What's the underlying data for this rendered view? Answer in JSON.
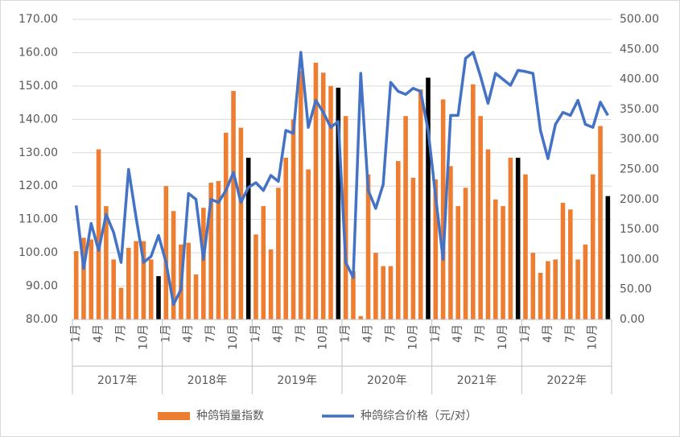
{
  "chart_data": {
    "type": "bar-line",
    "categories": [
      "1月",
      null,
      null,
      "4月",
      null,
      null,
      "7月",
      null,
      null,
      "10月",
      null,
      null,
      "1月",
      null,
      null,
      "4月",
      null,
      null,
      "7月",
      null,
      null,
      "10月",
      null,
      null,
      "1月",
      null,
      null,
      "4月",
      null,
      null,
      "7月",
      null,
      null,
      "10月",
      null,
      null,
      "1月",
      null,
      null,
      "4月",
      null,
      null,
      "7月",
      null,
      null,
      "10月",
      null,
      null,
      "1月",
      null,
      null,
      "4月",
      null,
      null,
      "7月",
      null,
      null,
      "10月",
      null,
      null,
      "1月",
      null,
      null,
      "4月",
      null,
      null,
      "7月",
      null,
      null,
      "10月",
      null,
      null
    ],
    "groups": [
      "2017年",
      "2018年",
      "2019年",
      "2020年",
      "2021年",
      "2022年"
    ],
    "series": [
      {
        "name": "种鸽销量指数",
        "color": "#ED7D31",
        "colors": [
          "#ED7D31",
          "#ED7D31",
          "#ED7D31",
          "#ED7D31",
          "#ED7D31",
          "#ED7D31",
          "#ED7D31",
          "#ED7D31",
          "#ED7D31",
          "#ED7D31",
          "#ED7D31",
          "#000000",
          "#ED7D31",
          "#ED7D31",
          "#ED7D31",
          "#ED7D31",
          "#ED7D31",
          "#ED7D31",
          "#ED7D31",
          "#ED7D31",
          "#ED7D31",
          "#ED7D31",
          "#ED7D31",
          "#000000",
          "#ED7D31",
          "#ED7D31",
          "#ED7D31",
          "#ED7D31",
          "#ED7D31",
          "#ED7D31",
          "#ED7D31",
          "#ED7D31",
          "#ED7D31",
          "#ED7D31",
          "#ED7D31",
          "#000000",
          "#ED7D31",
          "#ED7D31",
          "#ED7D31",
          "#ED7D31",
          "#ED7D31",
          "#ED7D31",
          "#ED7D31",
          "#ED7D31",
          "#ED7D31",
          "#ED7D31",
          "#ED7D31",
          "#000000",
          "#ED7D31",
          "#ED7D31",
          "#ED7D31",
          "#ED7D31",
          "#ED7D31",
          "#ED7D31",
          "#ED7D31",
          "#ED7D31",
          "#ED7D31",
          "#ED7D31",
          "#ED7D31",
          "#000000",
          "#ED7D31",
          "#ED7D31",
          "#ED7D31",
          "#ED7D31",
          "#ED7D31",
          "#ED7D31",
          "#ED7D31",
          "#ED7D31",
          "#ED7D31",
          "#ED7D31",
          "#ED7D31",
          "#000000"
        ],
        "values": [
          100.5,
          104.5,
          104,
          131,
          114,
          98,
          89.5,
          101.5,
          103.5,
          103.5,
          98,
          93,
          120,
          112.5,
          102.5,
          103,
          93.5,
          113.5,
          121,
          121.5,
          136,
          148.5,
          137.5,
          128.5,
          105.5,
          114,
          101,
          119.5,
          128.5,
          140,
          154.5,
          125,
          157,
          154,
          150,
          149.5,
          141,
          94.5,
          81,
          123.5,
          100,
          96,
          96,
          127.5,
          141,
          122.5,
          149,
          152.5,
          122,
          146,
          126,
          114,
          119.5,
          150.5,
          141,
          131,
          116,
          114,
          128.5,
          128.5,
          123.5,
          100,
          94,
          97.5,
          98,
          115,
          113,
          98,
          102.5,
          123.5,
          138,
          117
        ]
      },
      {
        "name": "种鸽综合价格（元/对）",
        "color": "#4472C4",
        "axis": "y2",
        "values": [
          190,
          85,
          160,
          115,
          175,
          145,
          95,
          250,
          170,
          95,
          105,
          140,
          95,
          25,
          50,
          210,
          200,
          100,
          200,
          195,
          215,
          245,
          195,
          220,
          228,
          215,
          240,
          230,
          315,
          310,
          445,
          320,
          365,
          345,
          320,
          330,
          95,
          70,
          410,
          215,
          185,
          225,
          395,
          380,
          375,
          385,
          380,
          315,
          205,
          100,
          340,
          340,
          435,
          445,
          405,
          360,
          410,
          400,
          390,
          415,
          413,
          410,
          315,
          268,
          325,
          345,
          340,
          365,
          325,
          320,
          362,
          340
        ]
      }
    ],
    "ylim": [
      80,
      170
    ],
    "yticks": [
      {
        "value": 80,
        "label": "80.00"
      },
      {
        "value": 90,
        "label": "90.00"
      },
      {
        "value": 100,
        "label": "100.00"
      },
      {
        "value": 110,
        "label": "110.00"
      },
      {
        "value": 120,
        "label": "120.00"
      },
      {
        "value": 130,
        "label": "130.00"
      },
      {
        "value": 140,
        "label": "140.00"
      },
      {
        "value": 150,
        "label": "150.00"
      },
      {
        "value": 160,
        "label": "160.00"
      },
      {
        "value": 170,
        "label": "170.00"
      }
    ],
    "y2lim": [
      0,
      500
    ],
    "y2ticks": [
      {
        "value": 0,
        "label": "0.00"
      },
      {
        "value": 50,
        "label": "50.00"
      },
      {
        "value": 100,
        "label": "100.00"
      },
      {
        "value": 150,
        "label": "150.00"
      },
      {
        "value": 200,
        "label": "200.00"
      },
      {
        "value": 250,
        "label": "250.00"
      },
      {
        "value": 300,
        "label": "300.00"
      },
      {
        "value": 350,
        "label": "350.00"
      },
      {
        "value": 400,
        "label": "400.00"
      },
      {
        "value": 450,
        "label": "450.00"
      },
      {
        "value": 500,
        "label": "500.00"
      }
    ],
    "grid": true,
    "legend": "bottom"
  }
}
